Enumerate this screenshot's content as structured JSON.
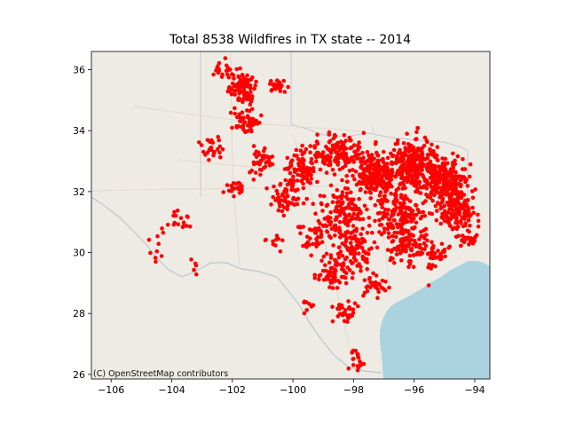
{
  "chart_data": {
    "type": "scatter",
    "title": "Total 8538 Wildfires in TX state -- 2014",
    "xlabel": "",
    "ylabel": "",
    "xlim": [
      -106.65,
      -93.5
    ],
    "ylim": [
      25.85,
      36.6
    ],
    "x_ticks": [
      -106,
      -104,
      -102,
      -100,
      -98,
      -96,
      -94
    ],
    "x_tick_labels": [
      "−106",
      "−104",
      "−102",
      "−100",
      "−98",
      "−96",
      "−94"
    ],
    "y_ticks": [
      26,
      28,
      30,
      32,
      34,
      36
    ],
    "y_tick_labels": [
      "26",
      "28",
      "30",
      "32",
      "34",
      "36"
    ],
    "grid": false,
    "marker_color": "#ff0000",
    "basemap_land_color": "#eeebe4",
    "basemap_water_color": "#aad3df",
    "attribution": "(C) OpenStreetMap contributors",
    "series": [
      {
        "clusters": [
          {
            "lon": -101.7,
            "lat": 35.4,
            "spread": 0.45,
            "n": 90
          },
          {
            "lon": -100.5,
            "lat": 35.5,
            "spread": 0.25,
            "n": 25
          },
          {
            "lon": -102.3,
            "lat": 36.0,
            "spread": 0.35,
            "n": 20
          },
          {
            "lon": -101.5,
            "lat": 34.3,
            "spread": 0.5,
            "n": 50
          },
          {
            "lon": -102.6,
            "lat": 33.4,
            "spread": 0.4,
            "n": 25
          },
          {
            "lon": -101.0,
            "lat": 33.0,
            "spread": 0.5,
            "n": 40
          },
          {
            "lon": -101.9,
            "lat": 32.1,
            "spread": 0.3,
            "n": 20
          },
          {
            "lon": -103.7,
            "lat": 31.0,
            "spread": 0.5,
            "n": 18
          },
          {
            "lon": -104.4,
            "lat": 30.0,
            "spread": 0.4,
            "n": 8
          },
          {
            "lon": -103.3,
            "lat": 29.6,
            "spread": 0.3,
            "n": 5
          },
          {
            "lon": -100.3,
            "lat": 31.8,
            "spread": 0.5,
            "n": 60
          },
          {
            "lon": -99.7,
            "lat": 32.8,
            "spread": 0.6,
            "n": 90
          },
          {
            "lon": -98.5,
            "lat": 33.3,
            "spread": 0.7,
            "n": 130
          },
          {
            "lon": -97.3,
            "lat": 32.6,
            "spread": 0.7,
            "n": 220
          },
          {
            "lon": -96.0,
            "lat": 32.9,
            "spread": 0.8,
            "n": 260
          },
          {
            "lon": -95.0,
            "lat": 32.3,
            "spread": 0.7,
            "n": 240
          },
          {
            "lon": -94.6,
            "lat": 31.3,
            "spread": 0.6,
            "n": 120
          },
          {
            "lon": -96.5,
            "lat": 31.3,
            "spread": 0.8,
            "n": 160
          },
          {
            "lon": -98.3,
            "lat": 31.3,
            "spread": 0.8,
            "n": 130
          },
          {
            "lon": -98.0,
            "lat": 30.1,
            "spread": 0.7,
            "n": 100
          },
          {
            "lon": -96.2,
            "lat": 30.3,
            "spread": 0.7,
            "n": 100
          },
          {
            "lon": -98.7,
            "lat": 29.3,
            "spread": 0.5,
            "n": 60
          },
          {
            "lon": -97.3,
            "lat": 28.9,
            "spread": 0.4,
            "n": 30
          },
          {
            "lon": -98.2,
            "lat": 28.0,
            "spread": 0.5,
            "n": 30
          },
          {
            "lon": -97.9,
            "lat": 26.5,
            "spread": 0.35,
            "n": 20
          },
          {
            "lon": -95.3,
            "lat": 29.9,
            "spread": 0.5,
            "n": 40
          },
          {
            "lon": -94.3,
            "lat": 30.4,
            "spread": 0.3,
            "n": 25
          },
          {
            "lon": -99.3,
            "lat": 30.5,
            "spread": 0.6,
            "n": 40
          },
          {
            "lon": -100.7,
            "lat": 30.4,
            "spread": 0.4,
            "n": 10
          },
          {
            "lon": -99.7,
            "lat": 28.2,
            "spread": 0.4,
            "n": 8
          }
        ]
      }
    ]
  }
}
